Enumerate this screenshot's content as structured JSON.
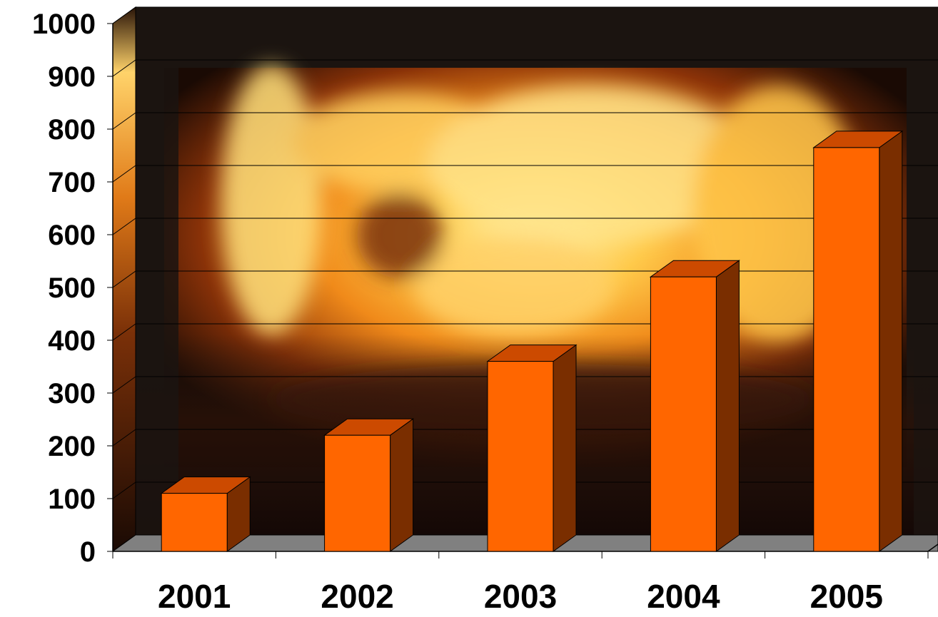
{
  "chart_data": {
    "type": "bar",
    "style": "3d-column",
    "title": "",
    "xlabel": "",
    "ylabel": "",
    "categories": [
      "2001",
      "2002",
      "2003",
      "2004",
      "2005"
    ],
    "values": [
      110,
      220,
      360,
      520,
      765
    ],
    "ylim": [
      0,
      1000
    ],
    "yticks": [
      "0",
      "100",
      "200",
      "300",
      "400",
      "500",
      "600",
      "700",
      "800",
      "900",
      "1000"
    ],
    "grid": true,
    "legend": "none",
    "background": "fire photograph behind plot wall"
  },
  "colors": {
    "bar_front": "#ff6600",
    "bar_top": "#cc4a00",
    "bar_side": "#7a2e00",
    "floor": "#808080",
    "gridline": "#000000",
    "text": "#000000"
  }
}
